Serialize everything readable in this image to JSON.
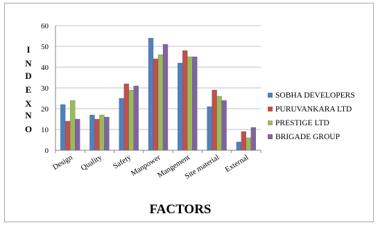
{
  "chart_data": {
    "type": "bar",
    "xlabel": "FACTORS",
    "ylabel_lines": [
      "I",
      "N",
      "D",
      "E",
      "X",
      "",
      "N",
      "O"
    ],
    "ylim": [
      0,
      60
    ],
    "yticks": [
      0,
      10,
      20,
      30,
      40,
      50,
      60
    ],
    "grid": true,
    "legend_position": "right",
    "categories": [
      "Design",
      "Quality",
      "Safety",
      "Manpower",
      "Mangement",
      "Site material",
      "External"
    ],
    "series": [
      {
        "name": "SOBHA DEVELOPERS",
        "color": "#4f81bd",
        "values": [
          22,
          17,
          25,
          54,
          42,
          21,
          4
        ]
      },
      {
        "name": "PURUVANKARA LTD",
        "color": "#c0504d",
        "values": [
          14,
          15,
          32,
          44,
          48,
          29,
          9
        ]
      },
      {
        "name": "PRESTIGE LTD",
        "color": "#9bbb59",
        "values": [
          24,
          17,
          29,
          46,
          45,
          26,
          6
        ]
      },
      {
        "name": "BRIGADE GROUP",
        "color": "#8064a2",
        "values": [
          15,
          16,
          31,
          51,
          45,
          24,
          11
        ]
      }
    ]
  }
}
